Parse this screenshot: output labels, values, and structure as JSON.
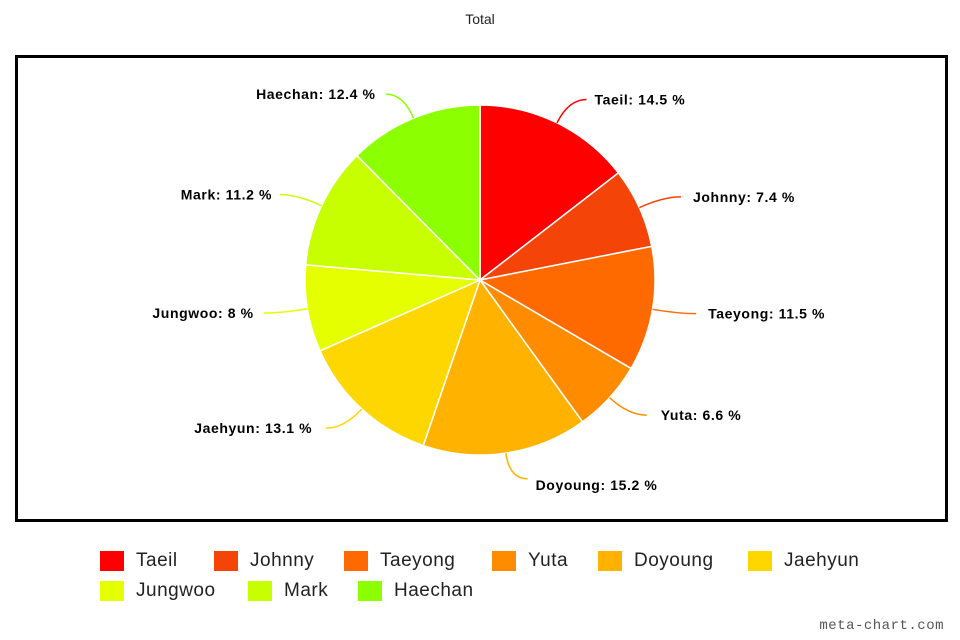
{
  "chart_data": {
    "type": "pie",
    "title": "Total",
    "slices": [
      {
        "label": "Taeil",
        "value": 14.5,
        "data_label": "Taeil: 14.5 %",
        "color": "#ff0000"
      },
      {
        "label": "Johnny",
        "value": 7.4,
        "data_label": "Johnny: 7.4 %",
        "color": "#f44408"
      },
      {
        "label": "Taeyong",
        "value": 11.5,
        "data_label": "Taeyong: 11.5 %",
        "color": "#ff6a00"
      },
      {
        "label": "Yuta",
        "value": 6.6,
        "data_label": "Yuta: 6.6 %",
        "color": "#ff8c00"
      },
      {
        "label": "Doyoung",
        "value": 15.2,
        "data_label": "Doyoung: 15.2 %",
        "color": "#ffb300"
      },
      {
        "label": "Jaehyun",
        "value": 13.1,
        "data_label": "Jaehyun: 13.1 %",
        "color": "#ffd700"
      },
      {
        "label": "Jungwoo",
        "value": 8,
        "data_label": "Jungwoo: 8 %",
        "color": "#e6ff00"
      },
      {
        "label": "Mark",
        "value": 11.2,
        "data_label": "Mark: 11.2 %",
        "color": "#c8ff00"
      },
      {
        "label": "Haechan",
        "value": 12.4,
        "data_label": "Haechan: 12.4 %",
        "color": "#8cff00"
      }
    ],
    "legend_position": "bottom"
  },
  "watermark": "meta-chart.com"
}
